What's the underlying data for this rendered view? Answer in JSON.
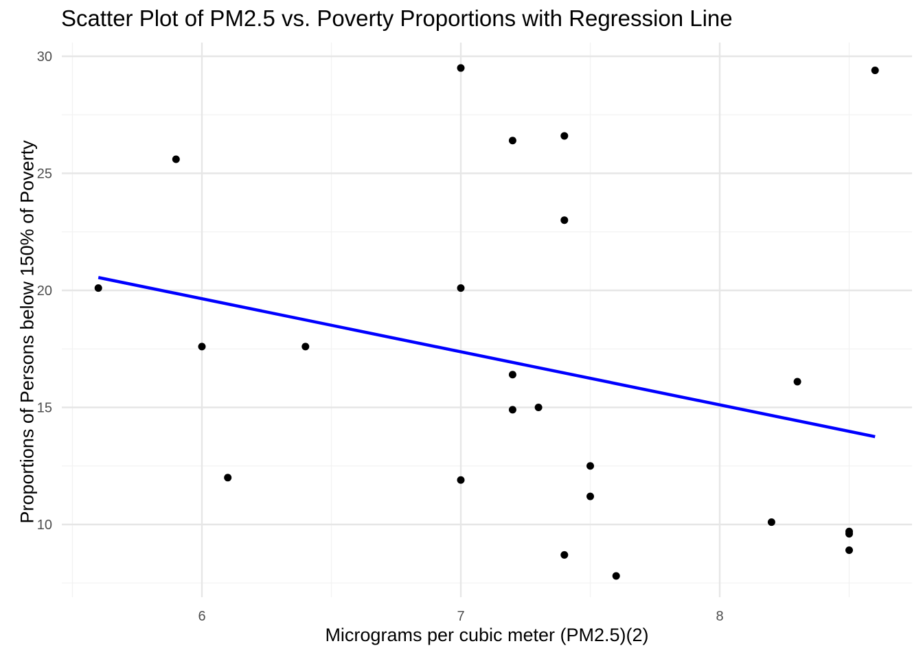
{
  "chart_data": {
    "type": "scatter",
    "title": "Scatter Plot of PM2.5 vs. Poverty Proportions with Regression Line",
    "xlabel": "Micrograms per cubic meter (PM2.5)(2)",
    "ylabel": "Proportions of Persons below 150% of Poverty",
    "xlim": [
      5.45,
      8.72
    ],
    "ylim": [
      6.7,
      30.5
    ],
    "x_ticks": [
      6,
      7,
      8
    ],
    "y_ticks": [
      10,
      15,
      20,
      25,
      30
    ],
    "grid": true,
    "points": [
      {
        "x": 5.6,
        "y": 20.1
      },
      {
        "x": 5.9,
        "y": 25.6
      },
      {
        "x": 6.0,
        "y": 17.6
      },
      {
        "x": 6.1,
        "y": 12.0
      },
      {
        "x": 6.4,
        "y": 17.6
      },
      {
        "x": 7.0,
        "y": 29.5
      },
      {
        "x": 7.0,
        "y": 20.1
      },
      {
        "x": 7.0,
        "y": 11.9
      },
      {
        "x": 7.2,
        "y": 26.4
      },
      {
        "x": 7.2,
        "y": 16.4
      },
      {
        "x": 7.2,
        "y": 14.9
      },
      {
        "x": 7.3,
        "y": 15.0
      },
      {
        "x": 7.4,
        "y": 26.6
      },
      {
        "x": 7.4,
        "y": 23.0
      },
      {
        "x": 7.4,
        "y": 8.7
      },
      {
        "x": 7.5,
        "y": 12.5
      },
      {
        "x": 7.5,
        "y": 11.2
      },
      {
        "x": 7.6,
        "y": 7.8
      },
      {
        "x": 8.2,
        "y": 10.1
      },
      {
        "x": 8.3,
        "y": 16.1
      },
      {
        "x": 8.5,
        "y": 9.7
      },
      {
        "x": 8.5,
        "y": 9.6
      },
      {
        "x": 8.5,
        "y": 8.9
      },
      {
        "x": 8.6,
        "y": 29.4
      }
    ],
    "regression_line": {
      "x": [
        5.6,
        8.6
      ],
      "y": [
        20.55,
        13.75
      ]
    },
    "colors": {
      "points": "#000000",
      "regression": "#0000ff",
      "grid_major": "#e6e6e6",
      "grid_minor": "#f2f2f2"
    }
  }
}
